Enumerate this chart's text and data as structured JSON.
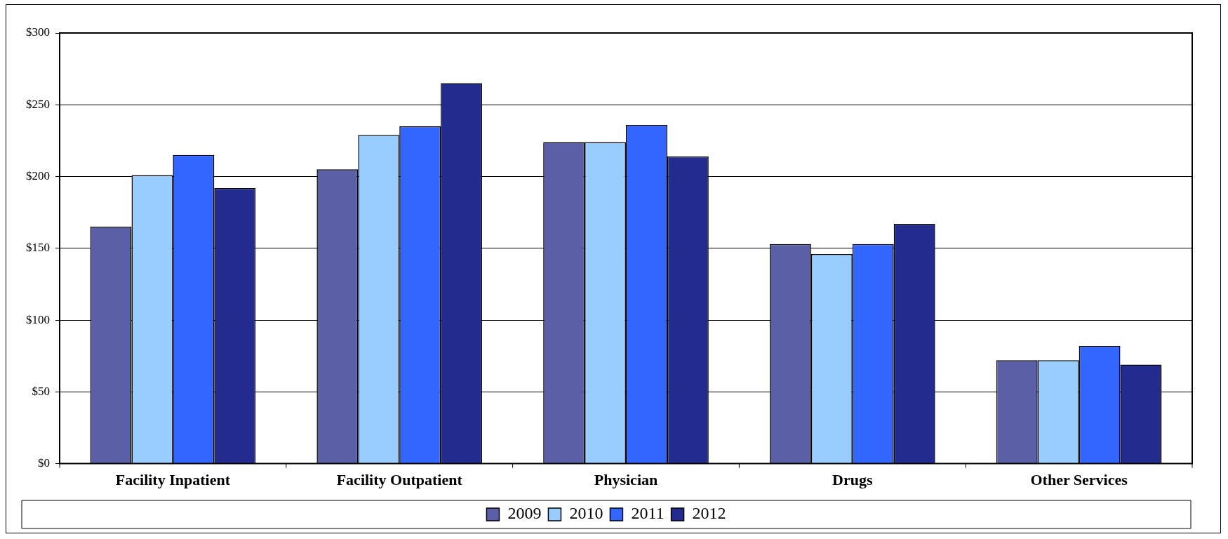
{
  "chart_data": {
    "type": "bar",
    "categories": [
      "Facility Inpatient",
      "Facility Outpatient",
      "Physician",
      "Drugs",
      "Other Services"
    ],
    "series": [
      {
        "name": "2009",
        "color": "#5b5fa6",
        "values": [
          165,
          205,
          224,
          153,
          72
        ]
      },
      {
        "name": "2010",
        "color": "#99ccff",
        "values": [
          201,
          229,
          224,
          146,
          72
        ]
      },
      {
        "name": "2011",
        "color": "#3366ff",
        "values": [
          215,
          235,
          236,
          153,
          82
        ]
      },
      {
        "name": "2012",
        "color": "#232b8f",
        "values": [
          192,
          265,
          214,
          167,
          69
        ]
      }
    ],
    "ylim": [
      0,
      300
    ],
    "yticks": [
      {
        "value": 0,
        "label": "$0"
      },
      {
        "value": 50,
        "label": "$50"
      },
      {
        "value": 100,
        "label": "$100"
      },
      {
        "value": 150,
        "label": "$150"
      },
      {
        "value": 200,
        "label": "$200"
      },
      {
        "value": 250,
        "label": "$250"
      },
      {
        "value": 300,
        "label": "$300"
      }
    ],
    "grid": "y",
    "legend": "bottom"
  }
}
